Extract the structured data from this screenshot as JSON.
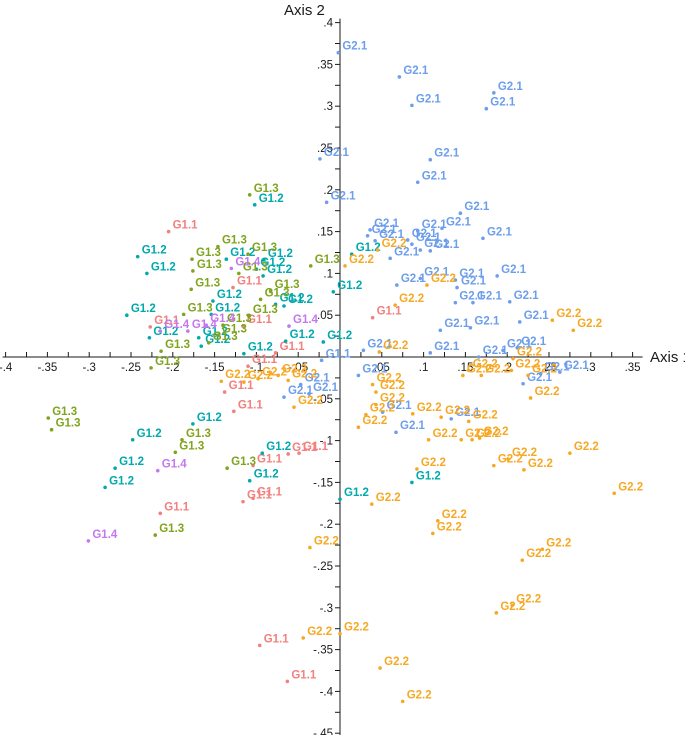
{
  "chart_data": {
    "type": "scatter",
    "x_axis": {
      "title": "Axis 1",
      "min": -0.4,
      "max": 0.35,
      "tick_interval": 0.025,
      "ticks": [
        [
          -0.4,
          "-.4"
        ],
        [
          -0.35,
          "-.35"
        ],
        [
          -0.3,
          "-.3"
        ],
        [
          -0.25,
          "-.25"
        ],
        [
          -0.2,
          "-.2"
        ],
        [
          -0.15,
          "-.15"
        ],
        [
          -0.1,
          "-.1"
        ],
        [
          -0.05,
          "-.05"
        ],
        [
          0.05,
          ".05"
        ],
        [
          0.1,
          ".1"
        ],
        [
          0.15,
          ".15"
        ],
        [
          0.2,
          ".2"
        ],
        [
          0.25,
          ".25"
        ],
        [
          0.3,
          ".3"
        ],
        [
          0.35,
          ".35"
        ]
      ]
    },
    "y_axis": {
      "title": "Axis 2",
      "min": -0.45,
      "max": 0.4,
      "tick_interval": 0.025,
      "ticks": [
        [
          0.4,
          ".4"
        ],
        [
          0.35,
          ".35"
        ],
        [
          0.3,
          ".3"
        ],
        [
          0.25,
          ".25"
        ],
        [
          0.2,
          ".2"
        ],
        [
          0.15,
          ".15"
        ],
        [
          0.1,
          ".1"
        ],
        [
          0.05,
          ".05"
        ],
        [
          -0.05,
          "-.05"
        ],
        [
          -0.1,
          "-.1"
        ],
        [
          -0.15,
          "-.15"
        ],
        [
          -0.2,
          "-.2"
        ],
        [
          -0.25,
          "-.25"
        ],
        [
          -0.3,
          "-.3"
        ],
        [
          -0.35,
          "-.35"
        ],
        [
          -0.4,
          "-.4"
        ],
        [
          -0.45,
          "-.45"
        ]
      ]
    },
    "axis_color": "#1a1a1a",
    "series": [
      {
        "name": "G1.1",
        "label": "G1.1",
        "color": "#F1807E",
        "points": [
          [
            -0.205,
            0.15
          ],
          [
            -0.128,
            0.083
          ],
          [
            -0.227,
            0.036
          ],
          [
            -0.116,
            0.037
          ],
          [
            -0.11,
            -0.011
          ],
          [
            -0.077,
            0.005
          ],
          [
            0.039,
            0.047
          ],
          [
            -0.138,
            -0.042
          ],
          [
            -0.127,
            -0.065
          ],
          [
            -0.062,
            -0.116
          ],
          [
            -0.049,
            -0.115
          ],
          [
            -0.104,
            -0.13
          ],
          [
            -0.116,
            -0.173
          ],
          [
            -0.104,
            -0.169
          ],
          [
            -0.215,
            -0.187
          ],
          [
            -0.096,
            -0.345
          ],
          [
            -0.063,
            -0.388
          ]
        ]
      },
      {
        "name": "G1.2",
        "label": "G1.2",
        "color": "#00A9AD",
        "points": [
          [
            -0.102,
            0.182
          ],
          [
            -0.242,
            0.12
          ],
          [
            -0.136,
            0.117
          ],
          [
            -0.091,
            0.116
          ],
          [
            -0.231,
            0.1
          ],
          [
            -0.1,
            0.105
          ],
          [
            -0.092,
            0.097
          ],
          [
            -0.008,
            0.078
          ],
          [
            -0.152,
            0.067
          ],
          [
            -0.077,
            0.063
          ],
          [
            -0.067,
            0.061
          ],
          [
            -0.154,
            0.051
          ],
          [
            -0.255,
            0.05
          ],
          [
            -0.228,
            0.023
          ],
          [
            -0.169,
            0.023
          ],
          [
            -0.166,
            0.013
          ],
          [
            -0.115,
            0.004
          ],
          [
            -0.065,
            0.019
          ],
          [
            -0.02,
            0.018
          ],
          [
            0.014,
            0.123
          ],
          [
            -0.176,
            -0.08
          ],
          [
            -0.248,
            -0.099
          ],
          [
            -0.093,
            -0.115
          ],
          [
            -0.269,
            -0.133
          ],
          [
            -0.108,
            -0.148
          ],
          [
            -0.281,
            -0.156
          ],
          [
            0.086,
            -0.15
          ],
          [
            0.0,
            -0.17
          ]
        ]
      },
      {
        "name": "G1.3",
        "label": "G1.3",
        "color": "#7FA41E",
        "points": [
          [
            -0.108,
            0.194
          ],
          [
            -0.146,
            0.132
          ],
          [
            -0.177,
            0.117
          ],
          [
            -0.11,
            0.123
          ],
          [
            -0.035,
            0.109
          ],
          [
            -0.176,
            0.103
          ],
          [
            -0.121,
            0.1
          ],
          [
            -0.178,
            0.081
          ],
          [
            -0.083,
            0.079
          ],
          [
            -0.095,
            0.069
          ],
          [
            -0.187,
            0.051
          ],
          [
            -0.109,
            0.049
          ],
          [
            -0.14,
            0.038
          ],
          [
            -0.146,
            0.026
          ],
          [
            -0.157,
            0.017
          ],
          [
            -0.214,
            0.007
          ],
          [
            -0.226,
            -0.013
          ],
          [
            -0.349,
            -0.073
          ],
          [
            -0.345,
            -0.087
          ],
          [
            -0.189,
            -0.099
          ],
          [
            -0.197,
            -0.114
          ],
          [
            -0.135,
            -0.133
          ],
          [
            -0.221,
            -0.213
          ]
        ]
      },
      {
        "name": "G1.4",
        "label": "G1.4",
        "color": "#C478F0",
        "points": [
          [
            -0.13,
            0.106
          ],
          [
            -0.215,
            0.031
          ],
          [
            -0.182,
            0.031
          ],
          [
            -0.16,
            0.038
          ],
          [
            -0.061,
            0.037
          ],
          [
            -0.218,
            -0.136
          ],
          [
            -0.301,
            -0.22
          ]
        ]
      },
      {
        "name": "G2.1",
        "label": "G2.1",
        "color": "#6D9EEC",
        "points": [
          [
            -0.002,
            0.364
          ],
          [
            0.071,
            0.335
          ],
          [
            0.086,
            0.301
          ],
          [
            0.184,
            0.316
          ],
          [
            0.175,
            0.297
          ],
          [
            -0.024,
            0.237
          ],
          [
            0.108,
            0.236
          ],
          [
            0.093,
            0.209
          ],
          [
            -0.016,
            0.185
          ],
          [
            0.144,
            0.172
          ],
          [
            0.036,
            0.152
          ],
          [
            0.033,
            0.145
          ],
          [
            0.042,
            0.139
          ],
          [
            0.093,
            0.151
          ],
          [
            0.122,
            0.154
          ],
          [
            0.081,
            0.14
          ],
          [
            0.086,
            0.135
          ],
          [
            0.096,
            0.128
          ],
          [
            0.108,
            0.127
          ],
          [
            0.06,
            0.118
          ],
          [
            0.171,
            0.142
          ],
          [
            0.096,
            0.094
          ],
          [
            0.138,
            0.092
          ],
          [
            0.188,
            0.097
          ],
          [
            0.068,
            0.086
          ],
          [
            0.14,
            0.083
          ],
          [
            0.138,
            0.065
          ],
          [
            0.159,
            0.065
          ],
          [
            0.203,
            0.066
          ],
          [
            0.12,
            0.032
          ],
          [
            0.156,
            0.035
          ],
          [
            0.215,
            0.042
          ],
          [
            0.028,
            0.008
          ],
          [
            0.108,
            0.005
          ],
          [
            0.166,
            0.0
          ],
          [
            0.195,
            0.008
          ],
          [
            0.212,
            0.011
          ],
          [
            0.24,
            -0.02
          ],
          [
            0.263,
            -0.018
          ],
          [
            0.022,
            -0.022
          ],
          [
            0.219,
            -0.032
          ],
          [
            -0.037,
            -0.044
          ],
          [
            -0.067,
            -0.048
          ],
          [
            -0.047,
            -0.033
          ],
          [
            0.051,
            -0.066
          ],
          [
            0.133,
            -0.074
          ],
          [
            0.067,
            -0.09
          ]
        ]
      },
      {
        "name": "G1.1-blue",
        "label": "G1.1",
        "color": "#6D9EEC",
        "points": [
          [
            -0.022,
            -0.004
          ]
        ]
      },
      {
        "name": "G2.2",
        "label": "G2.2",
        "color": "#F7A823",
        "points": [
          [
            0.045,
            0.128
          ],
          [
            0.006,
            0.109
          ],
          [
            0.104,
            0.086
          ],
          [
            0.066,
            0.062
          ],
          [
            0.254,
            0.044
          ],
          [
            0.279,
            0.032
          ],
          [
            0.047,
            0.006
          ],
          [
            0.207,
            -0.002
          ],
          [
            0.154,
            -0.016
          ],
          [
            0.205,
            -0.016
          ],
          [
            0.147,
            -0.022
          ],
          [
            0.169,
            -0.022
          ],
          [
            0.225,
            -0.022
          ],
          [
            0.039,
            -0.033
          ],
          [
            0.043,
            -0.042
          ],
          [
            -0.142,
            -0.029
          ],
          [
            -0.115,
            -0.03
          ],
          [
            -0.098,
            -0.026
          ],
          [
            -0.074,
            -0.022
          ],
          [
            -0.062,
            -0.028
          ],
          [
            -0.055,
            -0.06
          ],
          [
            0.043,
            -0.057
          ],
          [
            0.031,
            -0.069
          ],
          [
            0.087,
            -0.068
          ],
          [
            0.121,
            -0.072
          ],
          [
            0.022,
            -0.084
          ],
          [
            0.106,
            -0.099
          ],
          [
            0.228,
            -0.049
          ],
          [
            0.154,
            -0.077
          ],
          [
            0.145,
            -0.099
          ],
          [
            0.158,
            -0.099
          ],
          [
            0.167,
            -0.097
          ],
          [
            0.201,
            -0.122
          ],
          [
            0.184,
            -0.13
          ],
          [
            0.22,
            -0.135
          ],
          [
            0.275,
            -0.115
          ],
          [
            0.092,
            -0.134
          ],
          [
            0.038,
            -0.176
          ],
          [
            0.117,
            -0.196
          ],
          [
            0.111,
            -0.211
          ],
          [
            -0.036,
            -0.228
          ],
          [
            0.242,
            -0.23
          ],
          [
            0.218,
            -0.243
          ],
          [
            0.328,
            -0.163
          ],
          [
            0.206,
            -0.297
          ],
          [
            0.187,
            -0.306
          ],
          [
            0.0,
            -0.331
          ],
          [
            -0.044,
            -0.336
          ],
          [
            0.048,
            -0.372
          ],
          [
            0.075,
            -0.412
          ]
        ]
      }
    ]
  }
}
